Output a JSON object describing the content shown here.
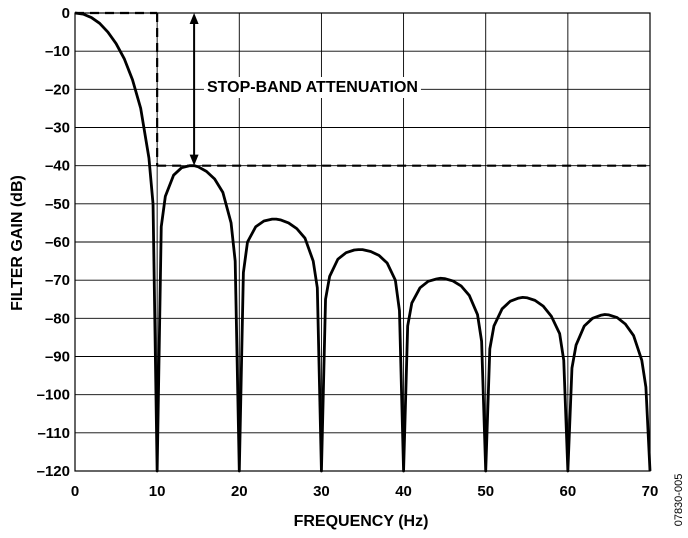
{
  "chart_data": {
    "type": "line",
    "xlabel": "FREQUENCY (Hz)",
    "ylabel": "FILTER GAIN (dB)",
    "xlim": [
      0,
      70
    ],
    "ylim": [
      -120,
      0
    ],
    "grid": true,
    "x_ticks": [
      0,
      10,
      20,
      30,
      40,
      50,
      60,
      70
    ],
    "y_ticks": [
      0,
      -10,
      -20,
      -30,
      -40,
      -50,
      -60,
      -70,
      -80,
      -90,
      -100,
      -110,
      -120
    ],
    "x_tick_labels": [
      "0",
      "10",
      "20",
      "30",
      "40",
      "50",
      "60",
      "70"
    ],
    "y_tick_labels": [
      "0",
      "–10",
      "–20",
      "–30",
      "–40",
      "–50",
      "–60",
      "–70",
      "–80",
      "–90",
      "–100",
      "–110",
      "–120"
    ],
    "series": [
      {
        "x": [
          0,
          1,
          2,
          3,
          4,
          5,
          6,
          7,
          8,
          9,
          9.5,
          10,
          10.5,
          11,
          12,
          13,
          14,
          14.5,
          15,
          16,
          17,
          18,
          19,
          19.5,
          20,
          20.5,
          21,
          22,
          23,
          24,
          24.5,
          25,
          26,
          27,
          28,
          29,
          29.5,
          30,
          30.5,
          31,
          32,
          33,
          34,
          34.5,
          35,
          36,
          37,
          38,
          39,
          39.5,
          40,
          40.5,
          41,
          42,
          43,
          44,
          44.5,
          45,
          46,
          47,
          48,
          49,
          49.5,
          50,
          50.5,
          51,
          52,
          53,
          54,
          54.5,
          55,
          56,
          57,
          58,
          59,
          59.5,
          60,
          60.5,
          61,
          62,
          63,
          64,
          64.5,
          65,
          66,
          67,
          68,
          69,
          69.5,
          70
        ],
        "values": [
          0,
          -0.3,
          -1.2,
          -2.7,
          -5,
          -8,
          -12,
          -17.5,
          -25,
          -38,
          -50,
          -120,
          -56,
          -48,
          -42.5,
          -40.5,
          -40,
          -40,
          -40.3,
          -41.5,
          -43.5,
          -47,
          -55,
          -65,
          -120,
          -68,
          -60,
          -56,
          -54.5,
          -54,
          -54,
          -54.2,
          -55,
          -56.5,
          -59,
          -65,
          -72,
          -120,
          -75,
          -69,
          -64.5,
          -62.8,
          -62.1,
          -62,
          -62,
          -62.5,
          -63.5,
          -65.5,
          -70,
          -78,
          -120,
          -82,
          -76,
          -72,
          -70.3,
          -69.7,
          -69.5,
          -69.6,
          -70.2,
          -71.5,
          -74,
          -79,
          -86,
          -120,
          -88,
          -82,
          -77.5,
          -75.5,
          -74.7,
          -74.5,
          -74.6,
          -75.3,
          -76.8,
          -79.5,
          -84,
          -91,
          -120,
          -93,
          -87,
          -82,
          -80,
          -79.2,
          -79,
          -79.1,
          -79.8,
          -81.5,
          -84.5,
          -91,
          -98,
          -120
        ]
      }
    ],
    "annotations": [
      {
        "text": "STOP-BAND ATTENUATION",
        "from": [
          14.5,
          0
        ],
        "to": [
          14.5,
          -40
        ]
      }
    ],
    "reference_lines": [
      {
        "style": "dashed",
        "points": [
          [
            0,
            0
          ],
          [
            10,
            0
          ]
        ]
      },
      {
        "style": "dashed",
        "points": [
          [
            10,
            0
          ],
          [
            10,
            -40
          ]
        ]
      },
      {
        "style": "dashed",
        "points": [
          [
            10,
            -40
          ],
          [
            70,
            -40
          ]
        ]
      }
    ]
  },
  "figure_id": "07830-005"
}
